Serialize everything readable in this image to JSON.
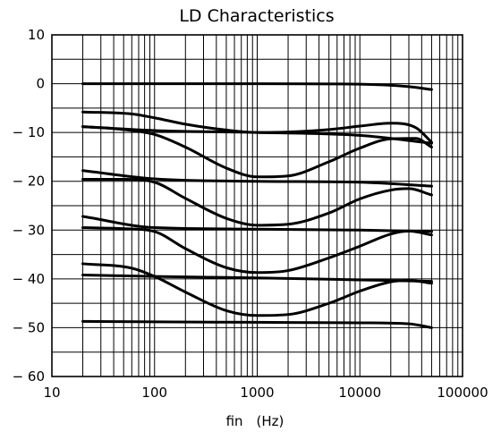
{
  "chart_data": {
    "type": "line",
    "title": "LD Characteristics",
    "xlabel": "fin (Hz)",
    "ylabel": "",
    "x_scale": "log",
    "xlim": [
      10,
      100000
    ],
    "ylim": [
      -60,
      10
    ],
    "x_tick_labels": [
      "10",
      "100",
      "1000",
      "10000",
      "100000"
    ],
    "y_tick_labels": [
      "10",
      "0",
      "− 10",
      "− 20",
      "− 30",
      "− 40",
      "− 50",
      "− 60"
    ],
    "x_ticks": [
      10,
      100,
      1000,
      10000,
      100000
    ],
    "y_ticks": [
      10,
      0,
      -10,
      -20,
      -30,
      -40,
      -50,
      -60
    ],
    "grid": true,
    "legend": "none",
    "series": [
      {
        "x": [
          20,
          100,
          1000,
          10000,
          30000,
          50000
        ],
        "y": [
          0,
          0,
          0,
          -0.1,
          -0.6,
          -1.2
        ]
      },
      {
        "x": [
          20,
          60,
          100,
          200,
          500,
          1000,
          2000,
          5000,
          10000,
          20000,
          35000,
          50000
        ],
        "y": [
          -5.8,
          -6.2,
          -7,
          -8.3,
          -9.5,
          -10,
          -9.9,
          -9.4,
          -8.7,
          -8.1,
          -9,
          -12
        ]
      },
      {
        "x": [
          20,
          100,
          1000,
          10000,
          50000
        ],
        "y": [
          -8.8,
          -9.6,
          -10,
          -10.6,
          -12.2
        ]
      },
      {
        "x": [
          20,
          50,
          100,
          200,
          500,
          1000,
          2000,
          5000,
          10000,
          20000,
          35000,
          50000
        ],
        "y": [
          -8.8,
          -9.4,
          -10.4,
          -13,
          -17.3,
          -19.1,
          -18.9,
          -16,
          -13.2,
          -11.3,
          -11.2,
          -13
        ]
      },
      {
        "x": [
          20,
          100,
          1000,
          10000,
          50000
        ],
        "y": [
          -17.8,
          -19.5,
          -20,
          -20.2,
          -21
        ]
      },
      {
        "x": [
          20,
          50,
          100,
          200,
          500,
          1000,
          2000,
          5000,
          10000,
          20000,
          30000,
          50000
        ],
        "y": [
          -19.6,
          -19.6,
          -20.2,
          -23.5,
          -27.6,
          -29,
          -28.8,
          -26.5,
          -23.6,
          -21.8,
          -21.5,
          -22.8
        ]
      },
      {
        "x": [
          20,
          100,
          1000,
          10000,
          50000
        ],
        "y": [
          -27.2,
          -29.5,
          -29.8,
          -30,
          -30.3
        ]
      },
      {
        "x": [
          20,
          50,
          100,
          200,
          500,
          1000,
          2000,
          5000,
          10000,
          20000,
          30000,
          50000
        ],
        "y": [
          -29.5,
          -29.7,
          -30.3,
          -33.8,
          -37.7,
          -38.7,
          -38.3,
          -35.7,
          -33.3,
          -30.8,
          -30.2,
          -31
        ]
      },
      {
        "x": [
          20,
          60,
          100,
          200,
          500,
          1000,
          2000,
          5000,
          10000,
          20000,
          30000,
          50000
        ],
        "y": [
          -36.9,
          -37.8,
          -39.5,
          -42.7,
          -46.5,
          -47.5,
          -47.3,
          -45,
          -42.5,
          -40.6,
          -40.3,
          -40.9
        ]
      },
      {
        "x": [
          20,
          100,
          1000,
          10000,
          50000
        ],
        "y": [
          -39.2,
          -39.5,
          -39.8,
          -40.2,
          -40.5
        ]
      },
      {
        "x": [
          20,
          100,
          1000,
          10000,
          30000,
          50000
        ],
        "y": [
          -48.7,
          -48.8,
          -48.9,
          -49,
          -49.2,
          -50
        ]
      }
    ]
  }
}
